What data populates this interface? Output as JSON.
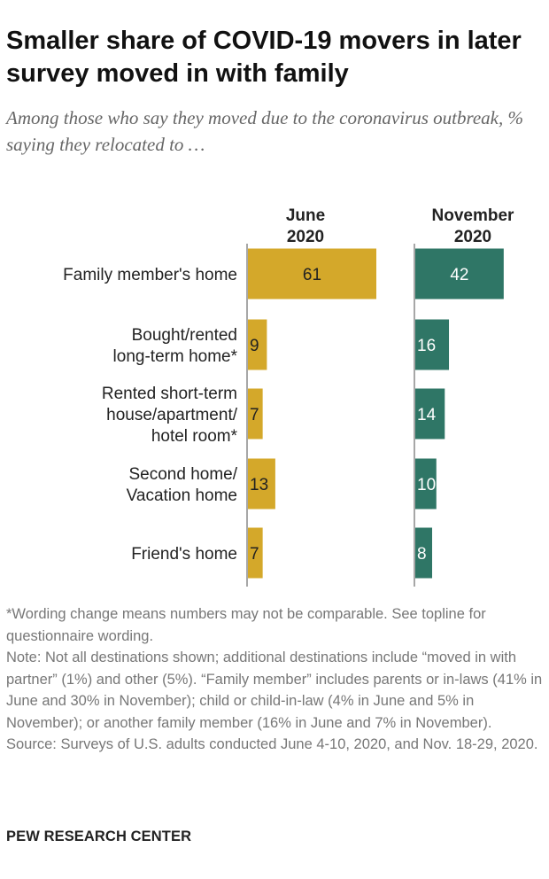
{
  "title": "Smaller share of COVID-19 movers in later survey moved in with family",
  "subtitle": "Among those who say they moved due to the coronavirus outbreak, % saying they relocated to …",
  "chart_data": {
    "type": "bar",
    "orientation": "horizontal",
    "categories": [
      [
        "Family member's home"
      ],
      [
        "Bought/rented",
        "long-term home*"
      ],
      [
        "Rented short-term",
        "house/apartment/",
        "hotel room*"
      ],
      [
        "Second home/",
        "Vacation home"
      ],
      [
        "Friend's home"
      ]
    ],
    "series": [
      {
        "name": "June 2020",
        "header": [
          "June",
          "2020"
        ],
        "color": "#d4a82a",
        "values": [
          61,
          9,
          7,
          13,
          7
        ]
      },
      {
        "name": "November 2020",
        "header": [
          "November",
          "2020"
        ],
        "color": "#2f7666",
        "values": [
          42,
          16,
          14,
          10,
          8
        ]
      }
    ],
    "xlim": [
      0,
      100
    ],
    "grid": false,
    "legend": "none"
  },
  "notes": [
    "*Wording change means numbers may not be comparable. See topline for questionnaire wording.",
    "Note: Not all destinations shown; additional destinations include “moved in with partner” (1%) and other (5%). “Family member” includes parents or in-laws (41% in June and 30% in November); child or child-in-law (4% in June and 5% in November); or another family member (16% in June and 7% in November).",
    "Source: Surveys of U.S. adults conducted June 4-10, 2020, and Nov. 18-29, 2020."
  ],
  "brand": "PEW RESEARCH CENTER"
}
